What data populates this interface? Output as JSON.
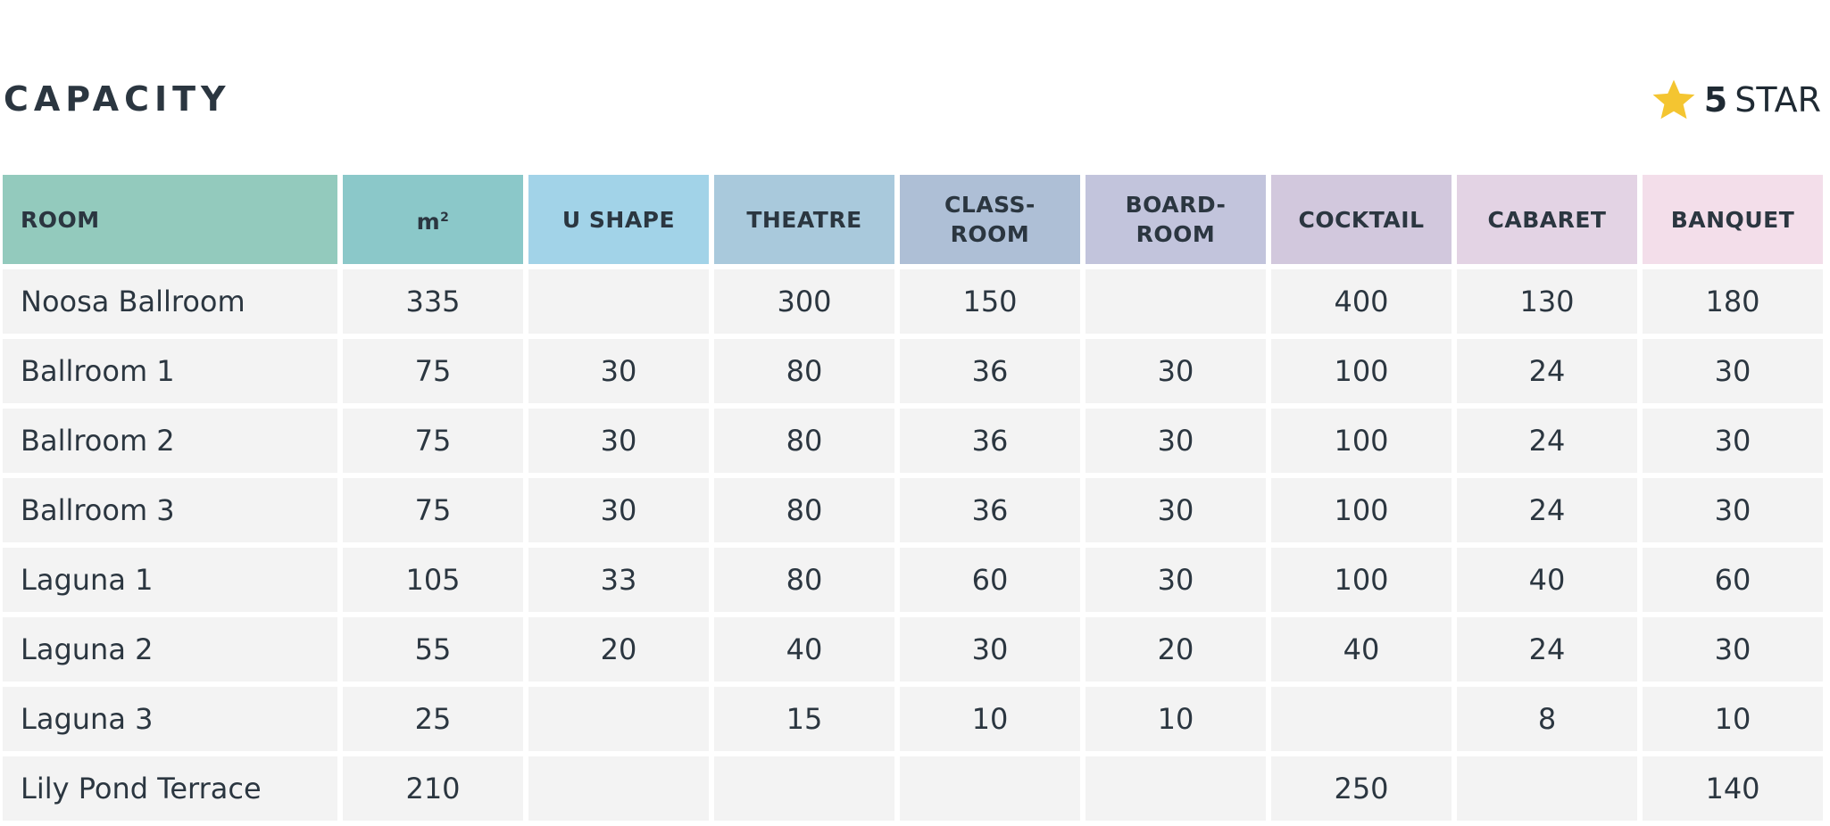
{
  "title": "CAPACITY",
  "rating": {
    "number": "5",
    "label": "STAR",
    "icon": "star-icon",
    "star_color": "#f4c531"
  },
  "colors": {
    "header_bg": [
      "#93cabd",
      "#8bc8c9",
      "#a2d3e8",
      "#a9c9dc",
      "#aebfd6",
      "#c2c4dc",
      "#d2c8dd",
      "#e3d3e4",
      "#f3deea"
    ],
    "cell_bg": "#f3f3f3",
    "text": "#2b3640"
  },
  "table": {
    "headers": [
      {
        "line1": "ROOM",
        "line2": ""
      },
      {
        "line1": "m",
        "sup": "2",
        "line2": ""
      },
      {
        "line1": "U SHAPE",
        "line2": ""
      },
      {
        "line1": "THEATRE",
        "line2": ""
      },
      {
        "line1": "CLASS-",
        "line2": "ROOM"
      },
      {
        "line1": "BOARD-",
        "line2": "ROOM"
      },
      {
        "line1": "COCKTAIL",
        "line2": ""
      },
      {
        "line1": "CABARET",
        "line2": ""
      },
      {
        "line1": "BANQUET",
        "line2": ""
      }
    ],
    "rows": [
      [
        "Noosa Ballroom",
        "335",
        "",
        "300",
        "150",
        "",
        "400",
        "130",
        "180"
      ],
      [
        "Ballroom 1",
        "75",
        "30",
        "80",
        "36",
        "30",
        "100",
        "24",
        "30"
      ],
      [
        "Ballroom 2",
        "75",
        "30",
        "80",
        "36",
        "30",
        "100",
        "24",
        "30"
      ],
      [
        "Ballroom 3",
        "75",
        "30",
        "80",
        "36",
        "30",
        "100",
        "24",
        "30"
      ],
      [
        "Laguna 1",
        "105",
        "33",
        "80",
        "60",
        "30",
        "100",
        "40",
        "60"
      ],
      [
        "Laguna 2",
        "55",
        "20",
        "40",
        "30",
        "20",
        "40",
        "24",
        "30"
      ],
      [
        "Laguna 3",
        "25",
        "",
        "15",
        "10",
        "10",
        "",
        "8",
        "10"
      ],
      [
        "Lily Pond Terrace",
        "210",
        "",
        "",
        "",
        "",
        "250",
        "",
        "140"
      ]
    ]
  }
}
